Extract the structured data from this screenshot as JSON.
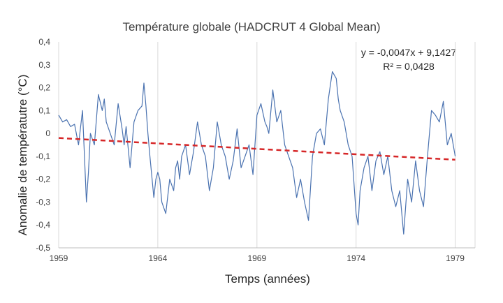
{
  "chart_data": {
    "type": "line",
    "title": "Température globale (HADCRUT 4 Global Mean)",
    "xlabel": "Temps (années)",
    "ylabel": "Anomalie de températutre (°C)",
    "xlim": [
      1959,
      1980
    ],
    "ylim": [
      -0.5,
      0.4
    ],
    "xticks": [
      "1959",
      "1964",
      "1969",
      "1974",
      "1979"
    ],
    "yticks": [
      "0,4",
      "0,3",
      "0,2",
      "0,1",
      "0",
      "-0,1",
      "-0,2",
      "-0,3",
      "-0,4",
      "-0,5"
    ],
    "grid": "vertical",
    "series": [
      {
        "color": "#4a72b0",
        "x": [
          1959.0,
          1959.2,
          1959.4,
          1959.6,
          1959.8,
          1960.0,
          1960.2,
          1960.4,
          1960.5,
          1960.6,
          1960.8,
          1961.0,
          1961.2,
          1961.3,
          1961.4,
          1961.6,
          1961.8,
          1962.0,
          1962.2,
          1962.3,
          1962.4,
          1962.6,
          1962.8,
          1963.0,
          1963.2,
          1963.3,
          1963.4,
          1963.5,
          1963.6,
          1963.8,
          1963.9,
          1964.0,
          1964.1,
          1964.2,
          1964.4,
          1964.6,
          1964.8,
          1964.9,
          1965.0,
          1965.1,
          1965.2,
          1965.4,
          1965.6,
          1965.8,
          1966.0,
          1966.2,
          1966.4,
          1966.6,
          1966.8,
          1967.0,
          1967.2,
          1967.4,
          1967.6,
          1967.8,
          1968.0,
          1968.2,
          1968.4,
          1968.6,
          1968.8,
          1969.0,
          1969.2,
          1969.4,
          1969.5,
          1969.6,
          1969.8,
          1970.0,
          1970.2,
          1970.4,
          1970.6,
          1970.8,
          1971.0,
          1971.2,
          1971.4,
          1971.6,
          1971.8,
          1972.0,
          1972.2,
          1972.4,
          1972.6,
          1972.8,
          1973.0,
          1973.1,
          1973.2,
          1973.4,
          1973.6,
          1973.8,
          1974.0,
          1974.1,
          1974.2,
          1974.4,
          1974.6,
          1974.8,
          1975.0,
          1975.2,
          1975.4,
          1975.6,
          1975.8,
          1976.0,
          1976.2,
          1976.4,
          1976.6,
          1976.8,
          1977.0,
          1977.2,
          1977.4,
          1977.6,
          1977.8,
          1978.0,
          1978.2,
          1978.4,
          1978.6,
          1978.8,
          1979.0
        ],
        "y": [
          0.08,
          0.05,
          0.06,
          0.03,
          0.04,
          -0.05,
          0.1,
          -0.3,
          -0.17,
          0.0,
          -0.05,
          0.17,
          0.1,
          0.15,
          0.05,
          0.0,
          -0.05,
          0.13,
          0.02,
          -0.05,
          0.03,
          -0.15,
          0.05,
          0.1,
          0.12,
          0.22,
          0.12,
          0.0,
          -0.1,
          -0.28,
          -0.2,
          -0.17,
          -0.2,
          -0.3,
          -0.35,
          -0.2,
          -0.25,
          -0.15,
          -0.12,
          -0.2,
          -0.1,
          -0.05,
          -0.18,
          -0.08,
          0.05,
          -0.05,
          -0.1,
          -0.25,
          -0.15,
          0.05,
          -0.05,
          -0.1,
          -0.2,
          -0.12,
          0.02,
          -0.15,
          -0.1,
          -0.05,
          -0.18,
          0.08,
          0.13,
          0.05,
          0.03,
          0.0,
          0.19,
          0.05,
          0.1,
          -0.05,
          -0.1,
          -0.15,
          -0.28,
          -0.2,
          -0.3,
          -0.38,
          -0.1,
          0.0,
          0.02,
          -0.05,
          0.15,
          0.27,
          0.24,
          0.15,
          0.1,
          0.05,
          -0.05,
          -0.1,
          -0.35,
          -0.4,
          -0.25,
          -0.15,
          -0.1,
          -0.25,
          -0.12,
          -0.08,
          -0.18,
          -0.1,
          -0.25,
          -0.32,
          -0.25,
          -0.44,
          -0.2,
          -0.3,
          -0.12,
          -0.25,
          -0.32,
          -0.1,
          0.1,
          0.08,
          0.05,
          0.14,
          -0.05,
          0.0,
          -0.1
        ],
        "trendline": {
          "equation": "y = -0,0047x + 9,1427",
          "r2": "R² = 0,0428",
          "start": [
            1959,
            -0.02
          ],
          "end": [
            1979,
            -0.115
          ],
          "color": "#d62728"
        }
      }
    ]
  }
}
